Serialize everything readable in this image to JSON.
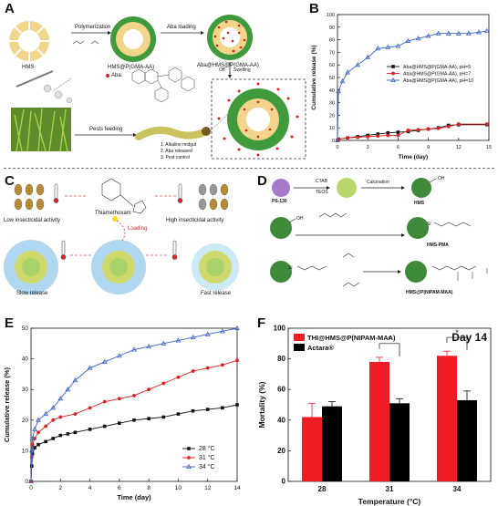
{
  "panels": {
    "A": {
      "letter": "A",
      "hms": "HMS",
      "polymerization": "Polymerization",
      "hms_pgma": "HMS@P(GMA-AA)",
      "aba_loading": "Aba loading",
      "aba_hms_pgma": "Aba@HMS@P(GMA-AA)",
      "aba_legend": "Aba:",
      "off": "Off",
      "swelling": "Swelling",
      "pests_feeding": "Pests feeding",
      "steps": [
        "1.  Alkaline midgut",
        "2.  Aba released",
        "3.  Pest control"
      ]
    },
    "C": {
      "letter": "C",
      "low": "Low insecticidal activity",
      "high": "High insecticidal activity",
      "thiamethoxam": "Thiamethoxam",
      "loading": "Loading",
      "slow": "Slow release",
      "fast": "Fast release"
    },
    "D": {
      "letter": "D",
      "ps130": "PS-130",
      "ctab": "CTAB",
      "teos": "TEOS",
      "calcination": "Calcination",
      "oh": "OH",
      "si": "Si",
      "hms": "HMS",
      "hms_pma": "HMS-PMA",
      "hms_pnipam": "HMS@P(NIPAM-MAA)"
    },
    "F": {
      "letter": "F",
      "day": "Day 14",
      "star": "*"
    }
  },
  "chart_data": [
    {
      "panel": "B",
      "type": "line",
      "xlabel": "Time (day)",
      "ylabel": "Cumulative release (%)",
      "xlim": [
        0,
        15
      ],
      "ylim": [
        0,
        100
      ],
      "xticks": [
        0,
        3,
        6,
        9,
        12,
        15
      ],
      "yticks": [
        0,
        10,
        20,
        30,
        40,
        50,
        60,
        70,
        80,
        90,
        100
      ],
      "legend_position": "middle-right",
      "series": [
        {
          "name": "Aba@HMS@P(GMA-AA), pH=5",
          "color": "#111111",
          "marker": "square",
          "x": [
            0,
            0.1,
            1,
            2,
            3,
            4,
            5,
            6,
            7,
            8,
            9,
            10,
            11,
            12,
            14.8
          ],
          "y": [
            0,
            1,
            2,
            3,
            4,
            5,
            6,
            6.5,
            7,
            8,
            9,
            10,
            12,
            12.5,
            12.5
          ]
        },
        {
          "name": "Aba@HMS@P(GMA-AA), pH=7",
          "color": "#e02020",
          "marker": "circle",
          "x": [
            0,
            0.1,
            1,
            2,
            3,
            4,
            5,
            6,
            7,
            8,
            9,
            10,
            11,
            12,
            14.8
          ],
          "y": [
            0,
            1,
            2,
            2.5,
            3,
            3.5,
            4,
            4,
            8,
            8.5,
            9,
            9.5,
            11,
            13,
            13
          ]
        },
        {
          "name": "Aba@HMS@P(GMA-AA), pH=10",
          "color": "#3a62c8",
          "marker": "triangle",
          "x": [
            0,
            0.1,
            0.5,
            1,
            2,
            3,
            4,
            5,
            6,
            7,
            8,
            9,
            10,
            11,
            12,
            13,
            14,
            14.8
          ],
          "y": [
            0,
            39,
            47,
            54,
            60,
            66,
            73,
            74,
            75,
            79,
            81,
            83,
            85,
            85,
            85,
            85,
            86,
            87
          ]
        }
      ]
    },
    {
      "panel": "E",
      "type": "line",
      "xlabel": "Time (day)",
      "ylabel": "Cumulative release (%)",
      "xlim": [
        0,
        14
      ],
      "ylim": [
        0,
        50
      ],
      "xticks": [
        0,
        2,
        4,
        6,
        8,
        10,
        12,
        14
      ],
      "yticks": [
        0,
        10,
        20,
        30,
        40,
        50
      ],
      "legend_position": "bottom-right",
      "series": [
        {
          "name": "28 °C",
          "color": "#111111",
          "marker": "square",
          "x": [
            0,
            0.05,
            0.1,
            0.25,
            0.5,
            1,
            1.5,
            2,
            2.5,
            3,
            4,
            5,
            6,
            7,
            8,
            9,
            10,
            11,
            12,
            13,
            14
          ],
          "y": [
            0,
            5,
            9,
            11,
            12,
            13,
            14,
            15,
            15.5,
            16,
            17,
            18,
            19,
            20,
            20.5,
            21,
            22,
            23,
            23.5,
            24,
            25
          ]
        },
        {
          "name": "31 °C",
          "color": "#e02020",
          "marker": "circle",
          "x": [
            0,
            0.05,
            0.1,
            0.25,
            0.5,
            1,
            1.5,
            2,
            3,
            4,
            5,
            6,
            7,
            8,
            9,
            10,
            11,
            12,
            13,
            14
          ],
          "y": [
            0,
            8,
            12,
            14,
            16,
            18,
            20,
            21,
            22,
            24,
            26,
            27,
            28,
            30,
            32,
            34,
            36,
            37,
            38,
            39.5
          ]
        },
        {
          "name": "34 °C",
          "color": "#3a62c8",
          "marker": "triangle",
          "x": [
            0,
            0.05,
            0.1,
            0.25,
            0.5,
            1,
            1.5,
            2,
            2.5,
            3,
            4,
            5,
            6,
            7,
            8,
            9,
            10,
            11,
            12,
            13,
            14
          ],
          "y": [
            0,
            10,
            14,
            17,
            20,
            22,
            24,
            27,
            30,
            33,
            37,
            39,
            41,
            43,
            44,
            45,
            46,
            47,
            48,
            49,
            50
          ]
        }
      ]
    },
    {
      "panel": "F",
      "type": "bar",
      "xlabel": "Temperature (°C)",
      "ylabel": "Mortality (%)",
      "categories": [
        "28",
        "31",
        "34"
      ],
      "ylim": [
        0,
        100
      ],
      "yticks": [
        0,
        20,
        40,
        60,
        80,
        100
      ],
      "legend_position": "top-left",
      "series": [
        {
          "name": "THI@HMS@P(NIPAM-MAA)",
          "color": "#ee1c24",
          "values": [
            42,
            78,
            82
          ],
          "errors": [
            9,
            3,
            3
          ]
        },
        {
          "name": "Actara®",
          "color": "#000000",
          "values": [
            49,
            51,
            53
          ],
          "errors": [
            3,
            3,
            6
          ]
        }
      ]
    }
  ]
}
